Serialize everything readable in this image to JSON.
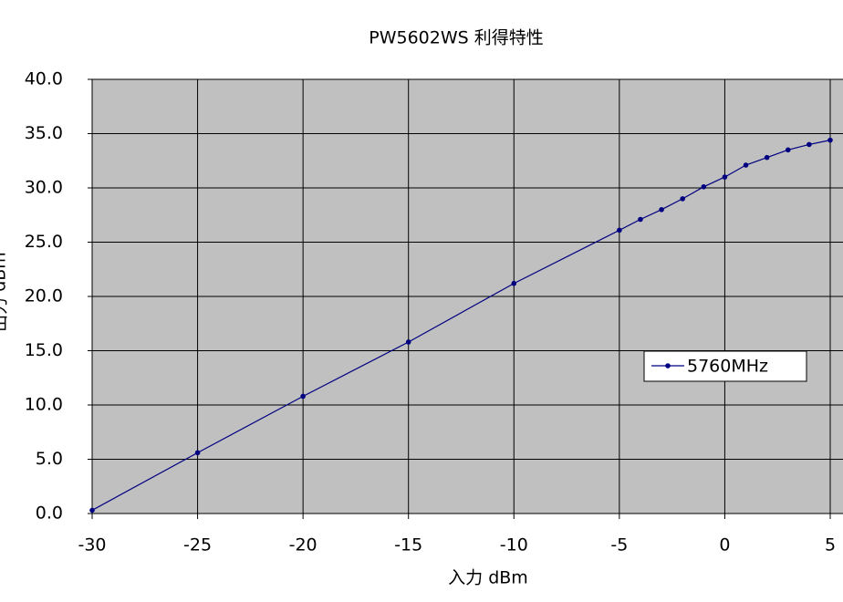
{
  "chart_data": {
    "type": "line",
    "title": "PW5602WS 利得特性",
    "x_label": "入力 dBm",
    "y_label": "出力 dBm",
    "x": [
      -30,
      -25,
      -20,
      -15,
      -10,
      -5,
      -4,
      -3,
      -2,
      -1,
      0,
      1,
      2,
      3,
      4,
      5
    ],
    "series": [
      {
        "name": "5760MHz",
        "color": "#000080",
        "values": [
          0.3,
          5.6,
          10.8,
          15.8,
          21.2,
          26.1,
          27.1,
          28.0,
          29.0,
          30.1,
          31.0,
          32.1,
          32.8,
          33.5,
          34.0,
          34.4
        ]
      }
    ],
    "xlim": [
      -30,
      5
    ],
    "xticks": [
      -30,
      -25,
      -20,
      -15,
      -10,
      -5,
      0,
      5
    ],
    "ylim": [
      0,
      40
    ],
    "yticks": [
      {
        "value": 0,
        "label": "0.0"
      },
      {
        "value": 5,
        "label": "5.0"
      },
      {
        "value": 10,
        "label": "10.0"
      },
      {
        "value": 15,
        "label": "15.0"
      },
      {
        "value": 20,
        "label": "20.0"
      },
      {
        "value": 25,
        "label": "25.0"
      },
      {
        "value": 30,
        "label": "30.0"
      },
      {
        "value": 35,
        "label": "35.0"
      },
      {
        "value": 40,
        "label": "40.0"
      }
    ],
    "grid": true,
    "background": "#c0c0c0"
  }
}
